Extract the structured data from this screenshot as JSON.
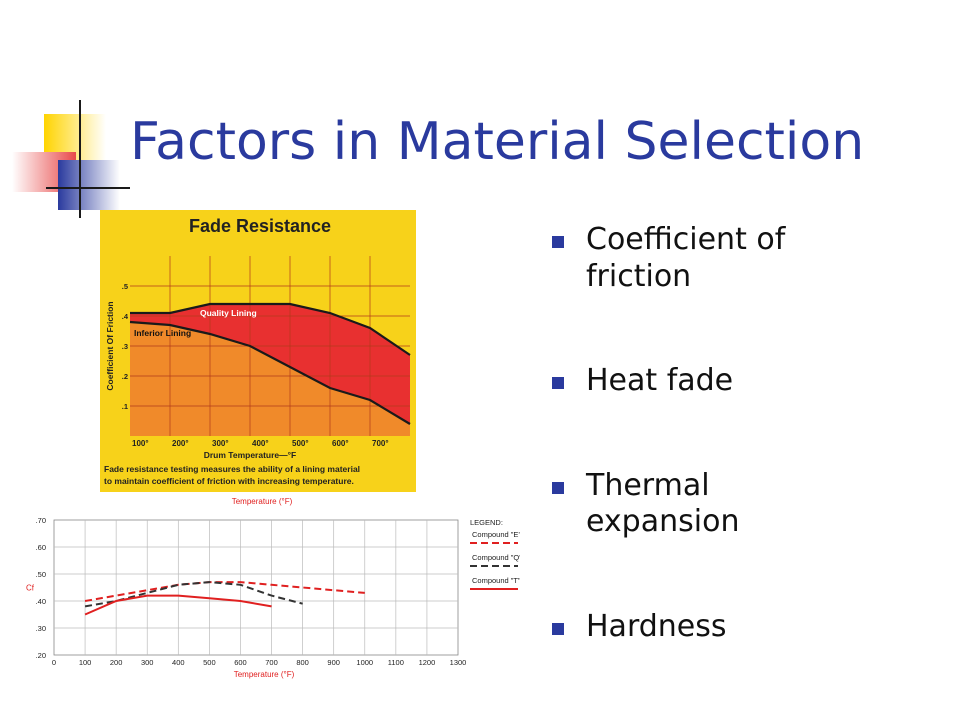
{
  "slide": {
    "title": "Factors in Material Selection",
    "bullets": [
      "Coefficient of friction",
      "Heat fade",
      "Thermal expansion",
      "Hardness"
    ]
  },
  "colors": {
    "title": "#2a3a9e",
    "bullet": "#2a3a9e",
    "deco_yellow": "#ffd400",
    "deco_blue": "#2a3a9e",
    "deco_red": "#e84a4a",
    "fade_bg": "#f7d21a",
    "fade_plot": "#f08a2a",
    "fade_band": "#e83030"
  },
  "chart_data": [
    {
      "type": "area",
      "title": "Fade Resistance",
      "xlabel": "Drum Temperature—°F",
      "ylabel": "Coefficient Of Friction",
      "caption": "Fade resistance testing measures the ability of a lining material to maintain coefficient of friction with increasing temperature.",
      "xlim": [
        100,
        800
      ],
      "ylim": [
        0,
        0.6
      ],
      "x_ticks": [
        "100°",
        "200°",
        "300°",
        "400°",
        "500°",
        "600°",
        "700°"
      ],
      "y_ticks": [
        ".1",
        ".2",
        ".3",
        ".4",
        ".5"
      ],
      "x": [
        100,
        200,
        300,
        400,
        500,
        600,
        700,
        800
      ],
      "series": [
        {
          "name": "Quality Lining",
          "values": [
            0.41,
            0.41,
            0.44,
            0.44,
            0.44,
            0.41,
            0.36,
            0.27
          ]
        },
        {
          "name": "Inferior Lining",
          "values": [
            0.38,
            0.37,
            0.34,
            0.3,
            0.23,
            0.16,
            0.12,
            0.04
          ]
        }
      ],
      "grid": true
    },
    {
      "type": "line",
      "title": "Temperature (°F)",
      "xlabel": "Temperature (°F)",
      "ylabel": "Cf",
      "legend_title": "LEGEND:",
      "legend_position": "right",
      "xlim": [
        0,
        1300
      ],
      "ylim": [
        0.2,
        0.7
      ],
      "x_ticks": [
        "0",
        "100",
        "200",
        "300",
        "400",
        "500",
        "600",
        "700",
        "800",
        "900",
        "1000",
        "1100",
        "1200",
        "1300"
      ],
      "y_ticks": [
        ".20",
        ".30",
        ".40",
        ".50",
        ".60",
        ".70"
      ],
      "series": [
        {
          "name": "Compound \"E\"",
          "color": "#e02020",
          "dash": "dashed",
          "x": [
            100,
            200,
            300,
            400,
            500,
            600,
            700,
            800,
            900,
            1000
          ],
          "values": [
            0.4,
            0.42,
            0.44,
            0.46,
            0.47,
            0.47,
            0.46,
            0.45,
            0.44,
            0.43
          ]
        },
        {
          "name": "Compound \"Q\"",
          "color": "#333333",
          "dash": "dashed",
          "x": [
            100,
            200,
            300,
            400,
            500,
            600,
            700,
            800
          ],
          "values": [
            0.38,
            0.4,
            0.43,
            0.46,
            0.47,
            0.46,
            0.42,
            0.39
          ]
        },
        {
          "name": "Compound \"T\"",
          "color": "#e02020",
          "dash": "solid",
          "x": [
            100,
            200,
            300,
            400,
            500,
            600,
            700
          ],
          "values": [
            0.35,
            0.4,
            0.42,
            0.42,
            0.41,
            0.4,
            0.38
          ]
        }
      ],
      "grid": true
    }
  ]
}
